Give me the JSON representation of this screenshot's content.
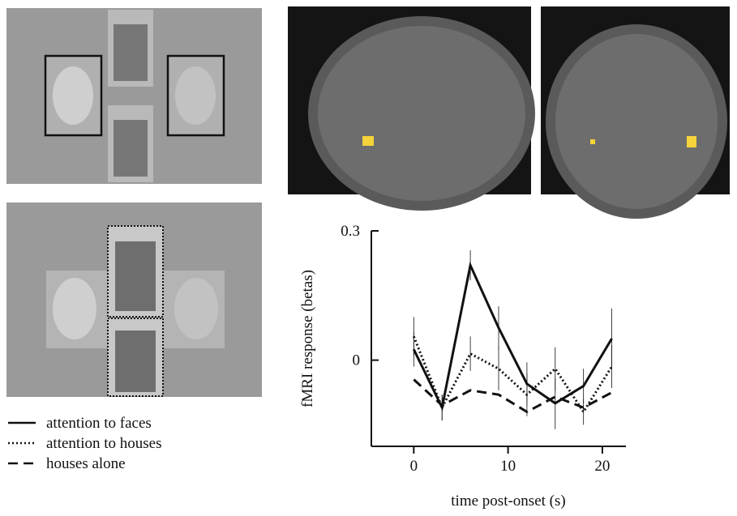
{
  "chart_data": {
    "type": "line",
    "x_label": "time post-onset (s)",
    "y_label": "fMRI response (betas)",
    "xlim": [
      -4.5,
      22.5
    ],
    "xticks": [
      0,
      10,
      20
    ],
    "ylim": [
      -0.2,
      0.3
    ],
    "yticks": [
      0,
      0.3
    ],
    "x": [
      0,
      3,
      6,
      9,
      12,
      15,
      18,
      21
    ],
    "series": [
      {
        "name": "attention to faces",
        "color": "#111111",
        "dash": "solid",
        "values": [
          0.025,
          -0.11,
          0.22,
          0.075,
          -0.055,
          -0.1,
          -0.06,
          0.05
        ],
        "errors": [
          0.04,
          0.03,
          0.035,
          0.05,
          0.05,
          0.06,
          0.04,
          0.07
        ]
      },
      {
        "name": "attention to houses",
        "color": "#111111",
        "dash": "dotted",
        "values": [
          0.055,
          -0.11,
          0.015,
          -0.02,
          -0.08,
          -0.02,
          -0.12,
          -0.015
        ],
        "errors": [
          0.045,
          0.03,
          0.04,
          0.05,
          0.05,
          0.05,
          0.03,
          0.05
        ]
      },
      {
        "name": "houses alone",
        "color": "#111111",
        "dash": "dashed",
        "values": [
          -0.045,
          -0.105,
          -0.07,
          -0.08,
          -0.12,
          -0.085,
          -0.11,
          -0.075
        ]
      }
    ]
  }
}
